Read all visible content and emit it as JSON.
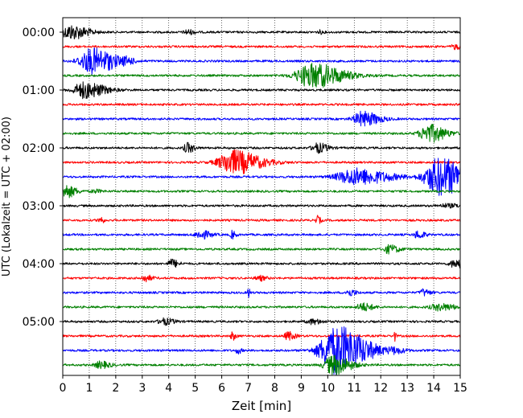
{
  "chart_data": {
    "type": "line",
    "title": "",
    "xlabel": "Zeit  [min]",
    "ylabel": "UTC (Lokalzeit = UTC + 02:00)",
    "xlim": [
      0,
      15
    ],
    "x_ticks": [
      "0",
      "1",
      "2",
      "3",
      "4",
      "5",
      "6",
      "7",
      "8",
      "9",
      "10",
      "11",
      "12",
      "13",
      "14",
      "15"
    ],
    "y_ticks": [
      "00:00",
      "01:00",
      "02:00",
      "03:00",
      "04:00",
      "05:00"
    ],
    "grid": "vertical dotted at each minute",
    "trace_interval_minutes": 15,
    "trace_colors": [
      "#000000",
      "#ff0000",
      "#0000ff",
      "#008000"
    ],
    "series": [
      {
        "start": "00:00",
        "color": "#000000",
        "events": [
          [
            0.3,
            9,
            0.5
          ],
          [
            4.7,
            3,
            0.2
          ],
          [
            9.7,
            2,
            0.1
          ]
        ]
      },
      {
        "start": "00:15",
        "color": "#ff0000",
        "events": [
          [
            14.8,
            3,
            0.2
          ]
        ]
      },
      {
        "start": "00:30",
        "color": "#0000ff",
        "events": [
          [
            1.1,
            16,
            0.7
          ],
          [
            2.4,
            3,
            0.2
          ]
        ]
      },
      {
        "start": "00:45",
        "color": "#008000",
        "events": [
          [
            9.4,
            15,
            0.9
          ]
        ]
      },
      {
        "start": "01:00",
        "color": "#000000",
        "events": [
          [
            0.8,
            10,
            0.6
          ]
        ]
      },
      {
        "start": "01:15",
        "color": "#ff0000",
        "events": []
      },
      {
        "start": "01:30",
        "color": "#0000ff",
        "events": [
          [
            11.3,
            9,
            0.5
          ]
        ]
      },
      {
        "start": "01:45",
        "color": "#008000",
        "events": [
          [
            13.8,
            11,
            0.5
          ]
        ]
      },
      {
        "start": "02:00",
        "color": "#000000",
        "events": [
          [
            4.7,
            6,
            0.2
          ],
          [
            9.6,
            6,
            0.3
          ]
        ]
      },
      {
        "start": "02:15",
        "color": "#ff0000",
        "events": [
          [
            6.4,
            15,
            0.8
          ]
        ]
      },
      {
        "start": "02:30",
        "color": "#0000ff",
        "events": [
          [
            11.0,
            10,
            1.0
          ],
          [
            14.2,
            24,
            0.8
          ]
        ]
      },
      {
        "start": "02:45",
        "color": "#008000",
        "events": [
          [
            0.1,
            8,
            0.3
          ],
          [
            1.2,
            2,
            0.2
          ]
        ]
      },
      {
        "start": "03:00",
        "color": "#000000",
        "events": [
          [
            14.5,
            2,
            0.5
          ]
        ]
      },
      {
        "start": "03:15",
        "color": "#ff0000",
        "events": [
          [
            1.4,
            5,
            0.1
          ],
          [
            9.6,
            5,
            0.1
          ]
        ]
      },
      {
        "start": "03:30",
        "color": "#0000ff",
        "events": [
          [
            5.2,
            5,
            0.3
          ],
          [
            6.4,
            5,
            0.1
          ],
          [
            13.4,
            5,
            0.2
          ]
        ]
      },
      {
        "start": "03:45",
        "color": "#008000",
        "events": [
          [
            12.3,
            5,
            0.3
          ]
        ]
      },
      {
        "start": "04:00",
        "color": "#000000",
        "events": [
          [
            4.1,
            5,
            0.2
          ],
          [
            14.8,
            5,
            0.3
          ]
        ]
      },
      {
        "start": "04:15",
        "color": "#ff0000",
        "events": [
          [
            3.1,
            4,
            0.2
          ],
          [
            7.4,
            3,
            0.2
          ]
        ]
      },
      {
        "start": "04:30",
        "color": "#0000ff",
        "events": [
          [
            7.0,
            6,
            0.05
          ],
          [
            10.8,
            4,
            0.2
          ],
          [
            13.6,
            4,
            0.2
          ]
        ]
      },
      {
        "start": "04:45",
        "color": "#008000",
        "events": [
          [
            11.3,
            5,
            0.3
          ],
          [
            14.2,
            4,
            0.5
          ]
        ]
      },
      {
        "start": "05:00",
        "color": "#000000",
        "events": [
          [
            3.8,
            4,
            0.3
          ],
          [
            9.4,
            3,
            0.3
          ]
        ]
      },
      {
        "start": "05:15",
        "color": "#ff0000",
        "events": [
          [
            6.4,
            5,
            0.1
          ],
          [
            8.5,
            5,
            0.2
          ],
          [
            12.5,
            7,
            0.05
          ]
        ]
      },
      {
        "start": "05:30",
        "color": "#0000ff",
        "events": [
          [
            6.6,
            4,
            0.1
          ],
          [
            10.3,
            30,
            0.9
          ],
          [
            12.5,
            3,
            0.3
          ]
        ]
      },
      {
        "start": "05:45",
        "color": "#008000",
        "events": [
          [
            1.4,
            4,
            0.3
          ],
          [
            10.2,
            12,
            0.5
          ]
        ]
      }
    ]
  }
}
